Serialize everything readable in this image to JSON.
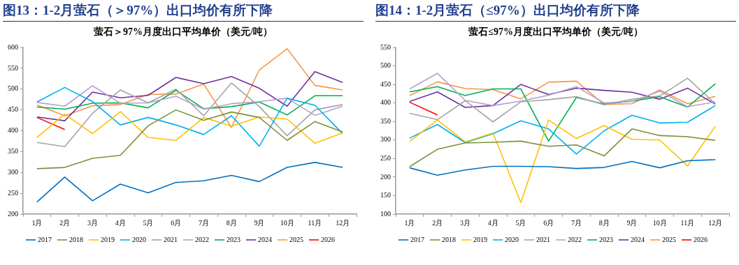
{
  "chart_data": [
    {
      "type": "line",
      "title": "图13：1-2月萤石（＞97%）出口均价有所下降",
      "subtitle": "萤石＞97%月度出口平均单价（美元/吨）",
      "categories": [
        "1月",
        "2月",
        "3月",
        "4月",
        "5月",
        "6月",
        "7月",
        "8月",
        "9月",
        "10月",
        "11月",
        "12月"
      ],
      "ylim": [
        200,
        600
      ],
      "yticks": [
        200,
        250,
        300,
        350,
        400,
        450,
        500,
        550,
        600
      ],
      "legend": "bottom",
      "series": [
        {
          "name": "2017",
          "color": "#0070c0",
          "values": [
            229,
            289,
            232,
            272,
            251,
            276,
            280,
            293,
            278,
            312,
            324,
            312
          ]
        },
        {
          "name": "2018",
          "color": "#77933c",
          "values": [
            309,
            312,
            334,
            341,
            412,
            450,
            425,
            445,
            432,
            377,
            422,
            397
          ]
        },
        {
          "name": "2019",
          "color": "#ffc000",
          "values": [
            384,
            440,
            393,
            446,
            384,
            377,
            432,
            411,
            433,
            428,
            370,
            395
          ]
        },
        {
          "name": "2020",
          "color": "#00b0f0",
          "values": [
            469,
            504,
            470,
            414,
            432,
            414,
            391,
            436,
            363,
            478,
            461,
            393
          ]
        },
        {
          "name": "2021",
          "color": "#a5a5a5",
          "values": [
            372,
            362,
            442,
            498,
            467,
            500,
            436,
            515,
            458,
            388,
            450,
            463
          ]
        },
        {
          "name": "2022",
          "color": "#b4a0d2",
          "values": [
            468,
            459,
            508,
            466,
            467,
            483,
            452,
            465,
            470,
            478,
            437,
            459
          ]
        },
        {
          "name": "2023",
          "color": "#00b050",
          "values": [
            457,
            452,
            466,
            467,
            455,
            497,
            453,
            458,
            469,
            438,
            484,
            484
          ]
        },
        {
          "name": "2024",
          "color": "#7030a0",
          "values": [
            433,
            424,
            493,
            479,
            485,
            528,
            513,
            530,
            502,
            459,
            542,
            516
          ]
        },
        {
          "name": "2025",
          "color": "#f79646",
          "values": [
            462,
            436,
            460,
            463,
            487,
            488,
            512,
            408,
            546,
            597,
            509,
            498
          ]
        },
        {
          "name": "2026",
          "color": "#ff0000",
          "values": [
            432,
            403,
            null,
            null,
            null,
            null,
            null,
            null,
            null,
            null,
            null,
            null
          ]
        }
      ]
    },
    {
      "type": "line",
      "title": "图14：1-2月萤石（≤97%）出口均价有所下降",
      "subtitle": "萤石≤97%月度出口平均单价（美元/吨）",
      "categories": [
        "1月",
        "2月",
        "3月",
        "4月",
        "5月",
        "6月",
        "7月",
        "8月",
        "9月",
        "10月",
        "11月",
        "12月"
      ],
      "ylim": [
        100,
        550
      ],
      "yticks": [
        100,
        150,
        200,
        250,
        300,
        350,
        400,
        450,
        500,
        550
      ],
      "legend": "bottom",
      "series": [
        {
          "name": "2017",
          "color": "#0070c0",
          "values": [
            225,
            205,
            219,
            229,
            229,
            228,
            223,
            226,
            242,
            225,
            244,
            247
          ]
        },
        {
          "name": "2018",
          "color": "#77933c",
          "values": [
            228,
            275,
            292,
            294,
            297,
            283,
            287,
            257,
            330,
            312,
            309,
            299
          ]
        },
        {
          "name": "2019",
          "color": "#ffc000",
          "values": [
            296,
            354,
            295,
            319,
            131,
            354,
            304,
            339,
            302,
            300,
            230,
            337
          ]
        },
        {
          "name": "2020",
          "color": "#00b0f0",
          "values": [
            305,
            342,
            293,
            317,
            352,
            330,
            262,
            325,
            367,
            346,
            348,
            393
          ]
        },
        {
          "name": "2021",
          "color": "#a5a5a5",
          "values": [
            372,
            355,
            406,
            349,
            403,
            409,
            417,
            395,
            410,
            419,
            467,
            398
          ]
        },
        {
          "name": "2022",
          "color": "#b4a0d2",
          "values": [
            438,
            480,
            407,
            393,
            405,
            421,
            444,
            400,
            404,
            432,
            390,
            403
          ]
        },
        {
          "name": "2023",
          "color": "#00b050",
          "values": [
            430,
            444,
            420,
            438,
            438,
            297,
            415,
            397,
            405,
            417,
            389,
            452
          ]
        },
        {
          "name": "2024",
          "color": "#7030a0",
          "values": [
            404,
            430,
            388,
            393,
            450,
            423,
            440,
            434,
            429,
            410,
            440,
            397
          ]
        },
        {
          "name": "2025",
          "color": "#f79646",
          "values": [
            420,
            457,
            439,
            436,
            411,
            456,
            459,
            396,
            398,
            435,
            398,
            418
          ]
        },
        {
          "name": "2026",
          "color": "#ff0000",
          "values": [
            402,
            368,
            null,
            null,
            null,
            null,
            null,
            null,
            null,
            null,
            null,
            null
          ]
        }
      ]
    }
  ]
}
